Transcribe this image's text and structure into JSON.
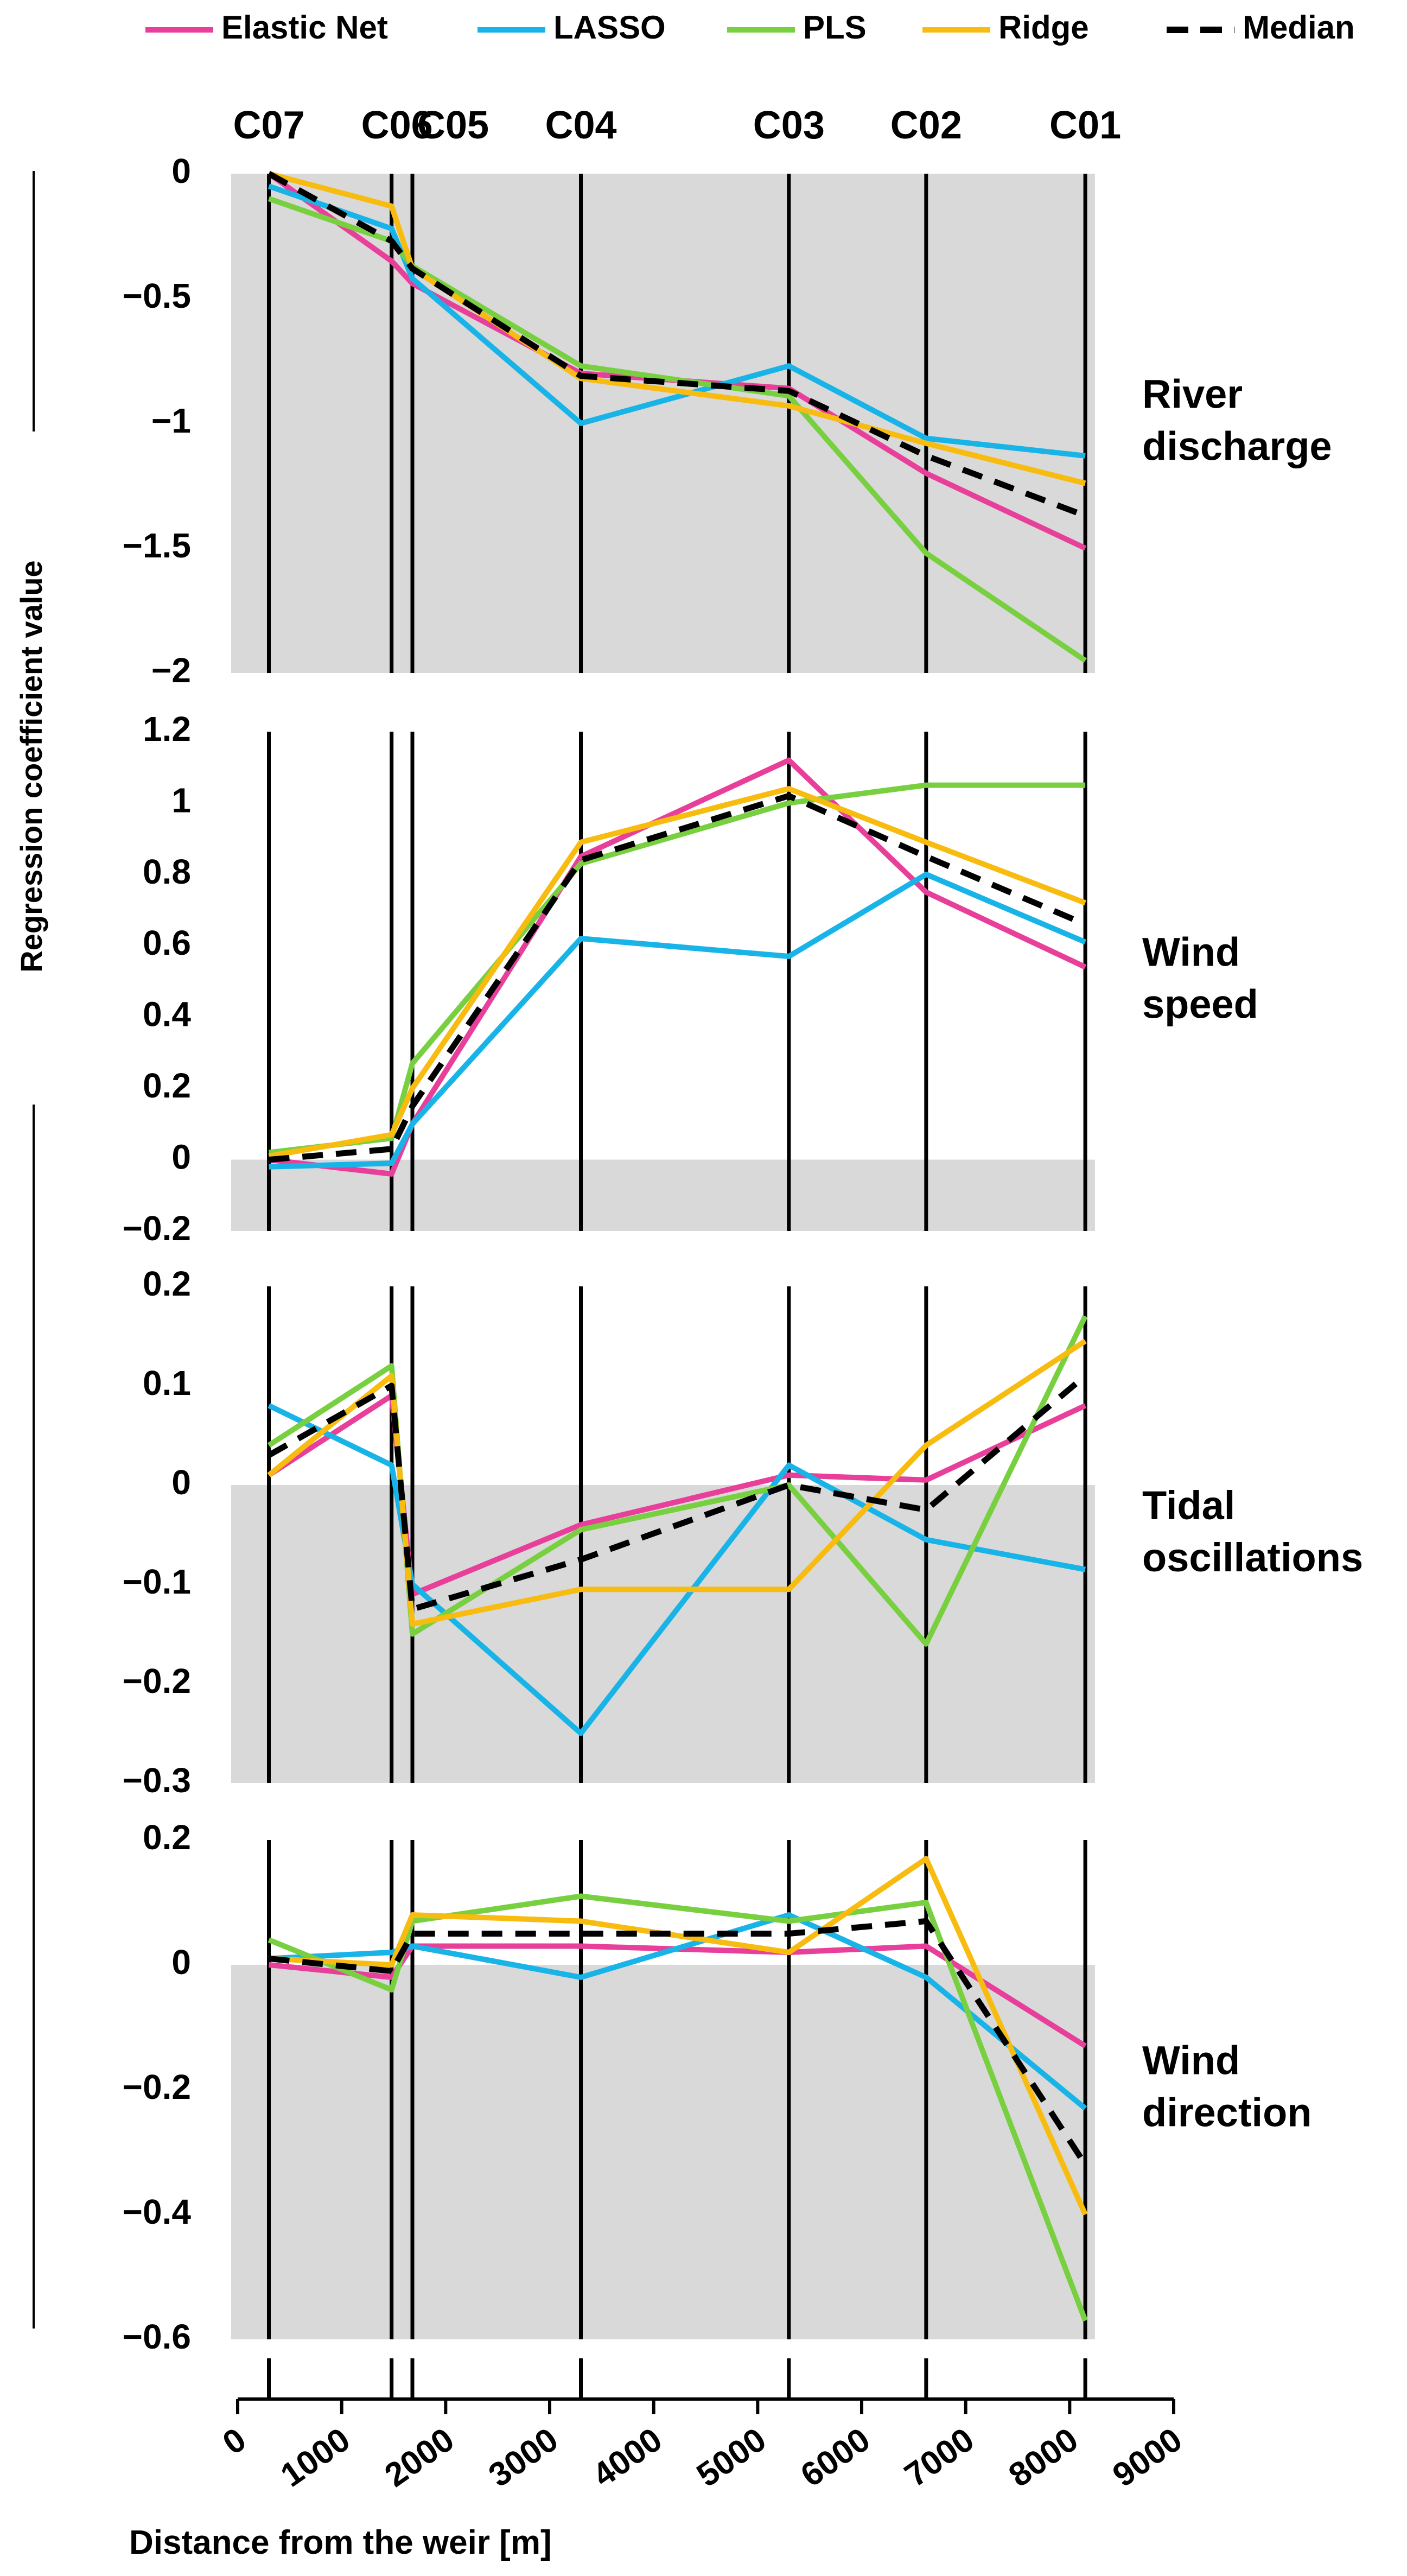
{
  "colors": {
    "elastic_net": "#e8409a",
    "lasso": "#18b4e8",
    "pls": "#78d040",
    "ridge": "#f8bc10",
    "median": "#000000",
    "shade": "#d9d9d9"
  },
  "chart_data": {
    "type": "line",
    "legend": {
      "placement": "top",
      "entries": [
        {
          "key": "elastic_net",
          "label": "Elastic Net"
        },
        {
          "key": "lasso",
          "label": "LASSO"
        },
        {
          "key": "pls",
          "label": "PLS"
        },
        {
          "key": "ridge",
          "label": "Ridge"
        },
        {
          "key": "median",
          "label": "Median"
        }
      ]
    },
    "ylabel": "Regression coefficient value",
    "xlabel": "Distance from the weir [m]",
    "xlim": [
      0,
      9000
    ],
    "x_ticks": [
      "0",
      "1000",
      "2000",
      "3000",
      "4000",
      "5000",
      "6000",
      "7000",
      "8000",
      "9000"
    ],
    "stations": [
      {
        "name": "C07",
        "x": 300,
        "show_label": true
      },
      {
        "name": "C06",
        "x": 1480,
        "show_label": true
      },
      {
        "name": "C05",
        "x": 1680,
        "show_label": true
      },
      {
        "name": "C04",
        "x": 3300,
        "show_label": true
      },
      {
        "name": "C03",
        "x": 5300,
        "show_label": true
      },
      {
        "name": "C02",
        "x": 6620,
        "show_label": true
      },
      {
        "name": "C01",
        "x": 8150,
        "show_label": true
      }
    ],
    "panels": [
      {
        "name": "river-discharge",
        "title_lines": [
          "River",
          "discharge"
        ],
        "ylim": [
          -2,
          0
        ],
        "y_ticks": [
          "0",
          "-0.5",
          "-1",
          "-1.5",
          "-2"
        ],
        "series": [
          {
            "key": "elastic_net",
            "values": [
              0,
              -0.35,
              -0.44,
              -0.8,
              -0.86,
              -1.2,
              -1.5
            ]
          },
          {
            "key": "lasso",
            "values": [
              -0.05,
              -0.22,
              -0.42,
              -1.0,
              -0.77,
              -1.06,
              -1.13
            ]
          },
          {
            "key": "pls",
            "values": [
              -0.1,
              -0.27,
              -0.37,
              -0.77,
              -0.89,
              -1.52,
              -1.95
            ]
          },
          {
            "key": "ridge",
            "values": [
              0,
              -0.13,
              -0.38,
              -0.82,
              -0.93,
              -1.08,
              -1.24
            ]
          },
          {
            "key": "median",
            "values": [
              0,
              -0.27,
              -0.38,
              -0.81,
              -0.87,
              -1.13,
              -1.37
            ]
          }
        ]
      },
      {
        "name": "wind-speed",
        "title_lines": [
          "Wind",
          "speed"
        ],
        "ylim": [
          -0.2,
          1.2
        ],
        "y_ticks": [
          "1.2",
          "1",
          "0.8",
          "0.6",
          "0.4",
          "0.2",
          "0",
          "-0.2"
        ],
        "series": [
          {
            "key": "elastic_net",
            "values": [
              0,
              -0.04,
              0.1,
              0.85,
              1.12,
              0.75,
              0.54
            ]
          },
          {
            "key": "lasso",
            "values": [
              -0.02,
              -0.01,
              0.1,
              0.62,
              0.57,
              0.8,
              0.61
            ]
          },
          {
            "key": "pls",
            "values": [
              0.02,
              0.06,
              0.27,
              0.83,
              1.0,
              1.05,
              1.05
            ]
          },
          {
            "key": "ridge",
            "values": [
              0.01,
              0.07,
              0.2,
              0.89,
              1.04,
              0.89,
              0.72
            ]
          },
          {
            "key": "median",
            "values": [
              0,
              0.03,
              0.15,
              0.84,
              1.02,
              0.85,
              0.66
            ]
          }
        ]
      },
      {
        "name": "tidal-oscillations",
        "title_lines": [
          "Tidal",
          "oscillations"
        ],
        "ylim": [
          -0.3,
          0.2
        ],
        "y_ticks": [
          "0.2",
          "0.1",
          "0",
          "-0.1",
          "-0.2",
          "-0.3"
        ],
        "series": [
          {
            "key": "elastic_net",
            "values": [
              0.01,
              0.09,
              -0.11,
              -0.04,
              0.01,
              0.005,
              0.08
            ]
          },
          {
            "key": "lasso",
            "values": [
              0.08,
              0.02,
              -0.1,
              -0.25,
              0.02,
              -0.055,
              -0.085
            ]
          },
          {
            "key": "pls",
            "values": [
              0.04,
              0.12,
              -0.15,
              -0.045,
              0,
              -0.16,
              0.17
            ]
          },
          {
            "key": "ridge",
            "values": [
              0.01,
              0.11,
              -0.14,
              -0.105,
              -0.105,
              0.04,
              0.145
            ]
          },
          {
            "key": "median",
            "values": [
              0.03,
              0.1,
              -0.125,
              -0.075,
              0,
              -0.025,
              0.11
            ]
          }
        ]
      },
      {
        "name": "wind-direction",
        "title_lines": [
          "Wind",
          "direction"
        ],
        "ylim": [
          -0.6,
          0.2
        ],
        "y_ticks": [
          "0.2",
          "0",
          "-0.2",
          "-0.4",
          "-0.6"
        ],
        "series": [
          {
            "key": "elastic_net",
            "values": [
              0,
              -0.02,
              0.03,
              0.03,
              0.02,
              0.03,
              -0.13
            ]
          },
          {
            "key": "lasso",
            "values": [
              0.01,
              0.02,
              0.03,
              -0.02,
              0.08,
              -0.02,
              -0.23
            ]
          },
          {
            "key": "pls",
            "values": [
              0.04,
              -0.04,
              0.07,
              0.11,
              0.07,
              0.1,
              -0.57
            ]
          },
          {
            "key": "ridge",
            "values": [
              0.01,
              0,
              0.08,
              0.07,
              0.02,
              0.17,
              -0.4
            ]
          },
          {
            "key": "median",
            "values": [
              0.01,
              -0.01,
              0.05,
              0.05,
              0.05,
              0.07,
              -0.32
            ]
          }
        ]
      }
    ]
  }
}
